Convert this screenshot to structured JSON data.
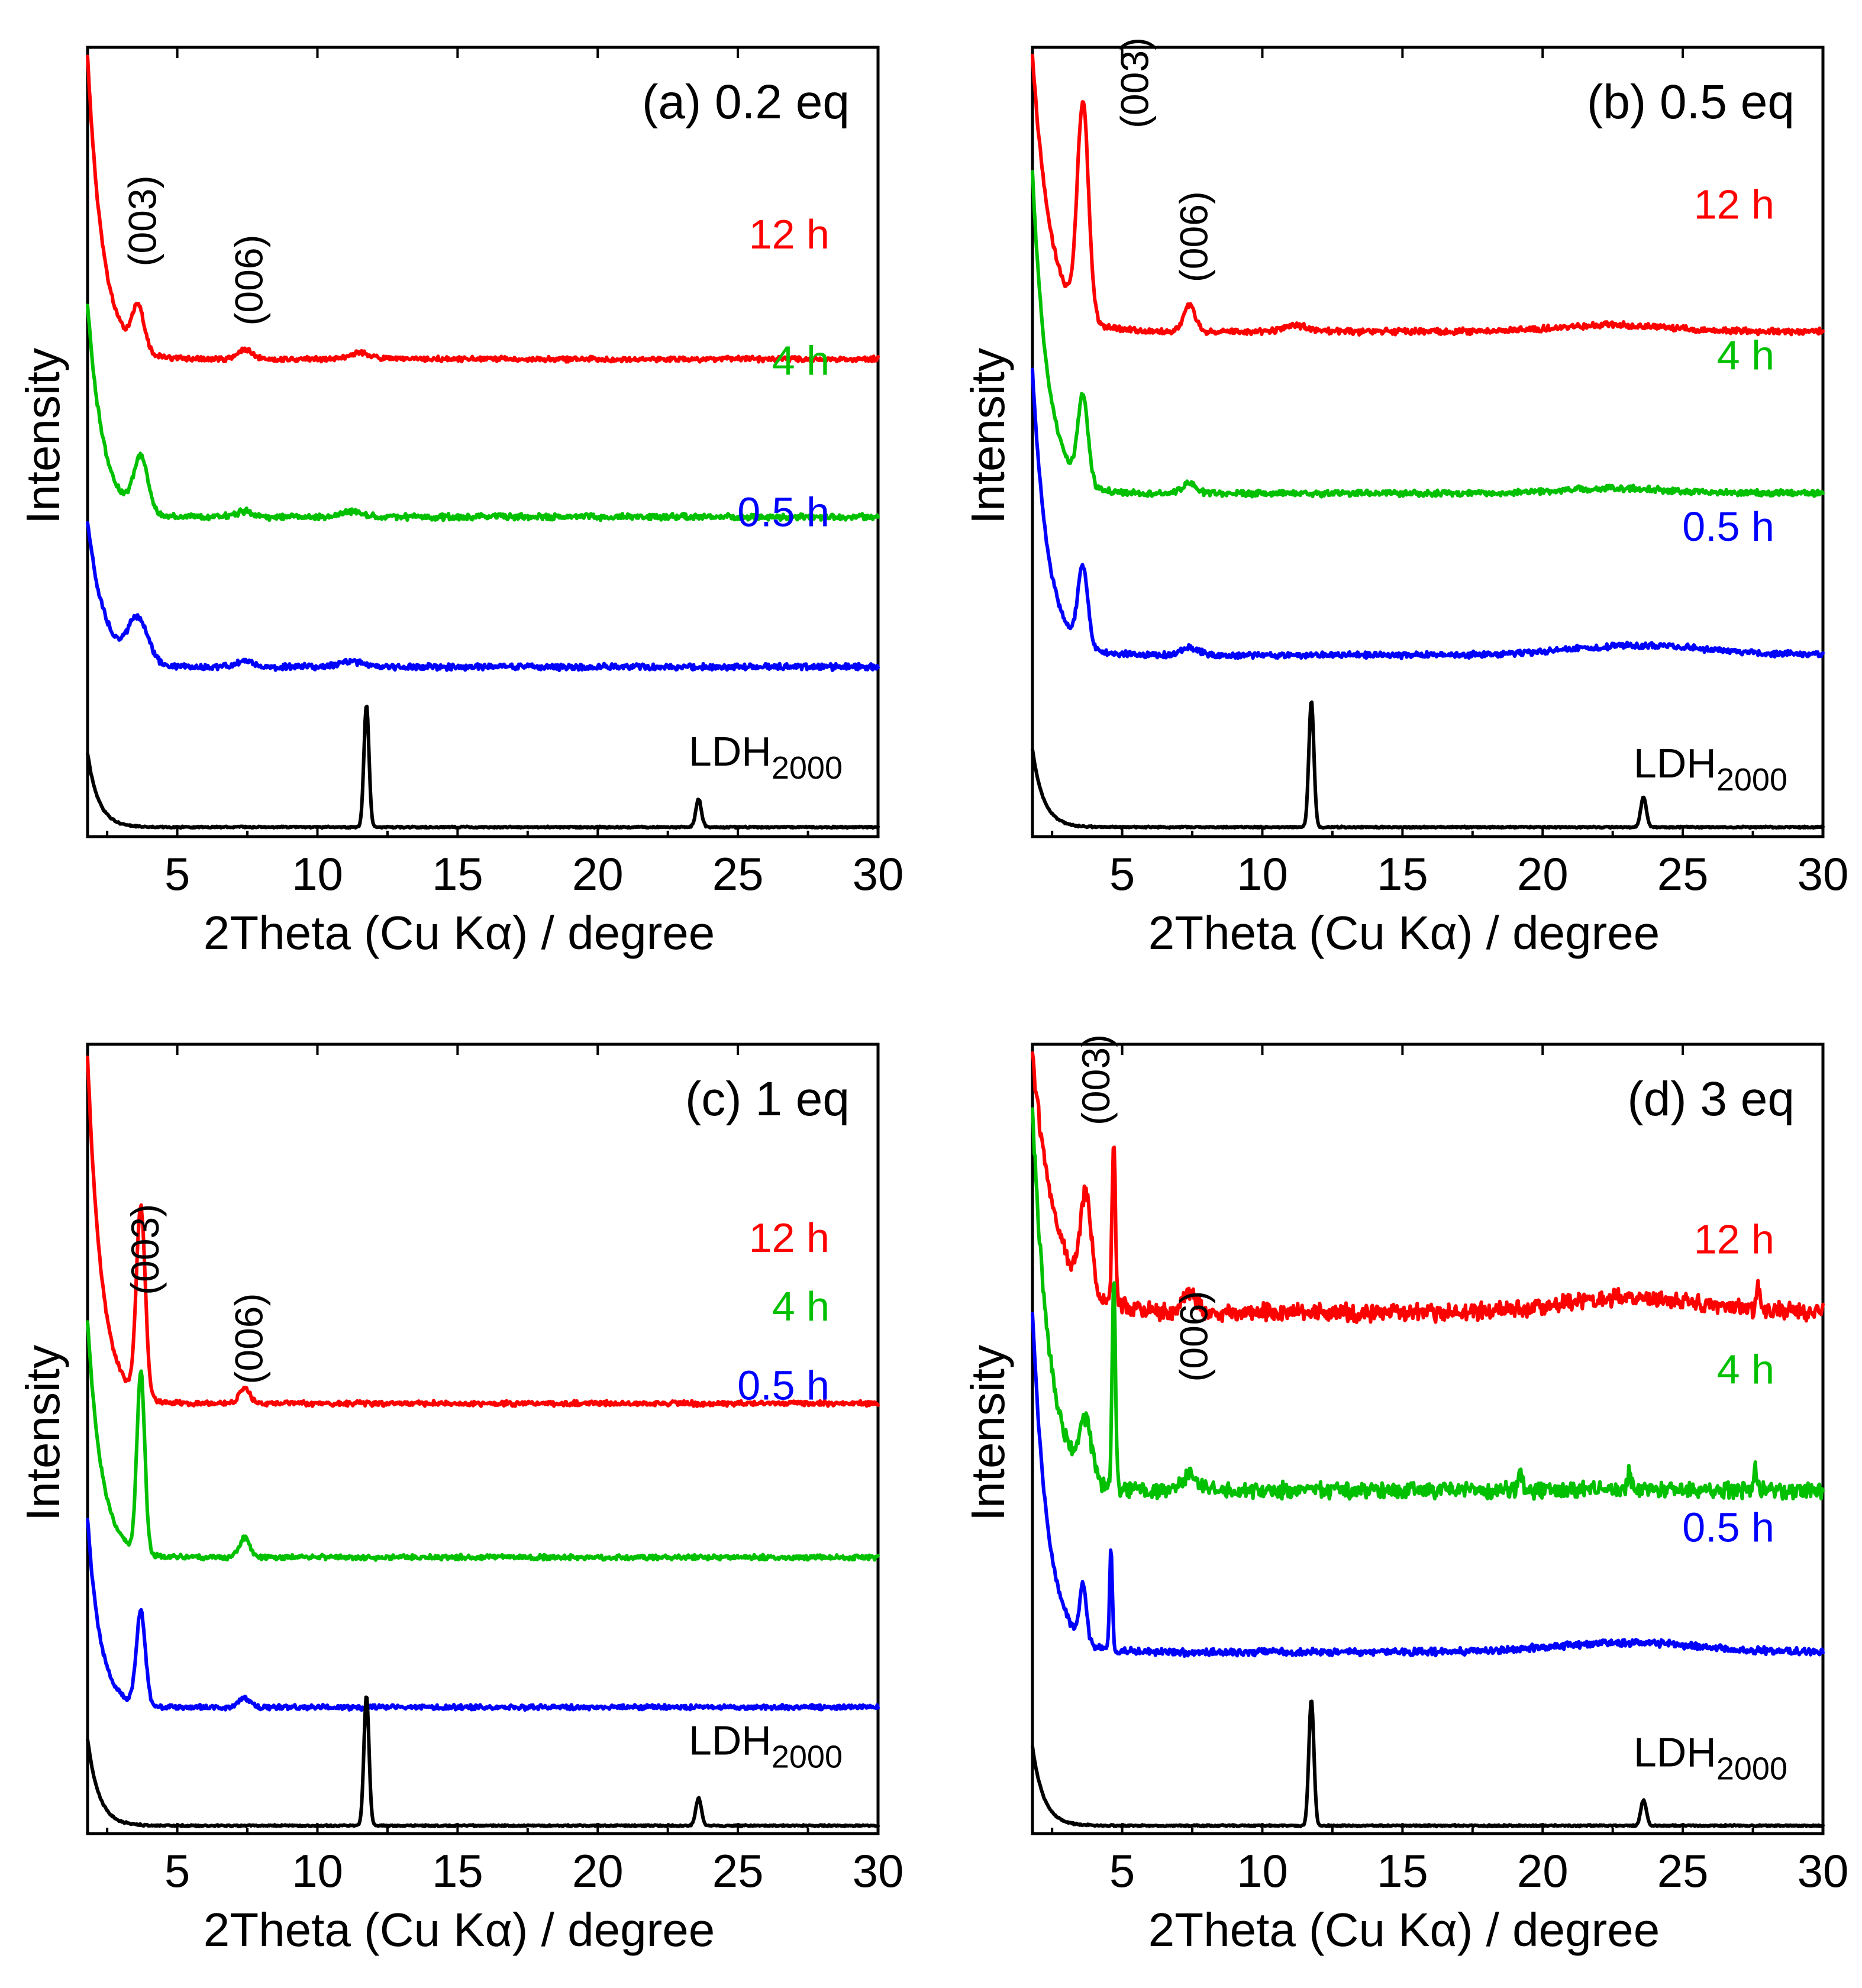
{
  "chart_data": [
    {
      "type": "line",
      "title": "(a) 0.2 eq",
      "xlabel": "2Theta (Cu Kα)  /  degree",
      "ylabel": "Intensity",
      "xlim": [
        1.8,
        30
      ],
      "ylim": [
        0,
        10
      ],
      "xticks": [
        5,
        10,
        15,
        20,
        25,
        30
      ],
      "xtick_labels": [
        "5",
        "10",
        "15",
        "20",
        "25",
        "30"
      ],
      "yticks_shown": false,
      "series": [
        {
          "name": "12 h",
          "label": "12 h",
          "color": "#ff0000",
          "baseline": 6.05,
          "low_angle_max": 9.9,
          "low_angle_decay": 0.55,
          "peaks": [
            {
              "x": 3.6,
              "h": 0.55,
              "w": 0.22
            },
            {
              "x": 7.4,
              "h": 0.12,
              "w": 0.25
            },
            {
              "x": 11.5,
              "h": 0.08,
              "w": 0.4
            }
          ],
          "noise": 0.025
        },
        {
          "name": "4 h",
          "label": "4 h",
          "color": "#00c000",
          "baseline": 4.05,
          "low_angle_max": 6.75,
          "low_angle_decay": 0.55,
          "peaks": [
            {
              "x": 3.7,
              "h": 0.7,
              "w": 0.25
            },
            {
              "x": 7.4,
              "h": 0.07,
              "w": 0.3
            },
            {
              "x": 11.2,
              "h": 0.07,
              "w": 0.4
            }
          ],
          "noise": 0.03
        },
        {
          "name": "0.5 h",
          "label": "0.5 h",
          "color": "#0000ff",
          "baseline": 2.15,
          "low_angle_max": 4.0,
          "low_angle_decay": 0.6,
          "peaks": [
            {
              "x": 3.6,
              "h": 0.55,
              "w": 0.35
            },
            {
              "x": 7.4,
              "h": 0.08,
              "w": 0.3
            },
            {
              "x": 11.2,
              "h": 0.07,
              "w": 0.4
            }
          ],
          "noise": 0.03
        },
        {
          "name": "LDH2000",
          "label": "LDH",
          "label_sub": "2000",
          "color": "#000000",
          "baseline": 0.12,
          "low_angle_max": 1.05,
          "low_angle_decay": 0.4,
          "peaks": [
            {
              "x": 11.75,
              "h": 1.55,
              "w": 0.09
            },
            {
              "x": 23.6,
              "h": 0.35,
              "w": 0.1
            }
          ],
          "noise": 0.008
        }
      ],
      "annotations": [
        {
          "text": "(003)",
          "x": 3.6
        },
        {
          "text": "(006)",
          "x": 7.4
        }
      ]
    },
    {
      "type": "line",
      "title": "(b) 0.5 eq",
      "xlabel": "2Theta (Cu Kα)  /  degree",
      "ylabel": "Intensity",
      "xlim": [
        1.8,
        30
      ],
      "ylim": [
        0,
        10
      ],
      "xticks": [
        5,
        10,
        15,
        20,
        25,
        30
      ],
      "xtick_labels": [
        "5",
        "10",
        "15",
        "20",
        "25",
        "30"
      ],
      "yticks_shown": false,
      "series": [
        {
          "name": "12 h",
          "label": "12 h",
          "color": "#ff0000",
          "baseline": 6.4,
          "low_angle_max": 9.9,
          "low_angle_decay": 0.65,
          "peaks": [
            {
              "x": 3.6,
              "h": 2.7,
              "w": 0.2
            },
            {
              "x": 7.4,
              "h": 0.35,
              "w": 0.2
            },
            {
              "x": 11.2,
              "h": 0.08,
              "w": 0.4
            },
            {
              "x": 22.5,
              "h": 0.08,
              "w": 2.0
            }
          ],
          "noise": 0.03
        },
        {
          "name": "4 h",
          "label": "4 h",
          "color": "#00c000",
          "baseline": 4.35,
          "low_angle_max": 8.4,
          "low_angle_decay": 0.55,
          "peaks": [
            {
              "x": 3.6,
              "h": 1.1,
              "w": 0.18
            },
            {
              "x": 7.4,
              "h": 0.12,
              "w": 0.25
            },
            {
              "x": 22.5,
              "h": 0.06,
              "w": 2.0
            }
          ],
          "noise": 0.03
        },
        {
          "name": "0.5 h",
          "label": "0.5 h",
          "color": "#0000ff",
          "baseline": 2.3,
          "low_angle_max": 5.9,
          "low_angle_decay": 0.55,
          "peaks": [
            {
              "x": 3.6,
              "h": 1.0,
              "w": 0.18
            },
            {
              "x": 7.4,
              "h": 0.1,
              "w": 0.3
            },
            {
              "x": 23.5,
              "h": 0.12,
              "w": 2.5
            }
          ],
          "noise": 0.03
        },
        {
          "name": "LDH2000",
          "label": "LDH",
          "label_sub": "2000",
          "color": "#000000",
          "baseline": 0.12,
          "low_angle_max": 1.1,
          "low_angle_decay": 0.4,
          "peaks": [
            {
              "x": 11.75,
              "h": 1.6,
              "w": 0.09
            },
            {
              "x": 23.6,
              "h": 0.38,
              "w": 0.1
            }
          ],
          "noise": 0.008
        }
      ],
      "annotations": [
        {
          "text": "(003)",
          "x": 3.6
        },
        {
          "text": "(006)",
          "x": 7.4
        }
      ]
    },
    {
      "type": "line",
      "title": "(c) 1 eq",
      "xlabel": "2Theta (Cu Kα)  /  degree",
      "ylabel": "Intensity",
      "xlim": [
        1.8,
        30
      ],
      "ylim": [
        0,
        10
      ],
      "xticks": [
        5,
        10,
        15,
        20,
        25,
        30
      ],
      "xtick_labels": [
        "5",
        "10",
        "15",
        "20",
        "25",
        "30"
      ],
      "yticks_shown": false,
      "series": [
        {
          "name": "12 h",
          "label": "12 h",
          "color": "#ff0000",
          "baseline": 5.45,
          "low_angle_max": 9.85,
          "low_angle_decay": 0.5,
          "peaks": [
            {
              "x": 3.7,
              "h": 2.4,
              "w": 0.16
            },
            {
              "x": 7.4,
              "h": 0.2,
              "w": 0.18
            }
          ],
          "noise": 0.025
        },
        {
          "name": "4 h",
          "label": "4 h",
          "color": "#00c000",
          "baseline": 3.5,
          "low_angle_max": 6.5,
          "low_angle_decay": 0.5,
          "peaks": [
            {
              "x": 3.7,
              "h": 2.3,
              "w": 0.14
            },
            {
              "x": 7.4,
              "h": 0.25,
              "w": 0.18
            }
          ],
          "noise": 0.025
        },
        {
          "name": "0.5 h",
          "label": "0.5 h",
          "color": "#0000ff",
          "baseline": 1.6,
          "low_angle_max": 4.0,
          "low_angle_decay": 0.45,
          "peaks": [
            {
              "x": 3.7,
              "h": 1.2,
              "w": 0.16
            },
            {
              "x": 7.4,
              "h": 0.12,
              "w": 0.2
            }
          ],
          "noise": 0.025
        },
        {
          "name": "LDH2000",
          "label": "LDH",
          "label_sub": "2000",
          "color": "#000000",
          "baseline": 0.1,
          "low_angle_max": 1.2,
          "low_angle_decay": 0.4,
          "peaks": [
            {
              "x": 11.75,
              "h": 1.65,
              "w": 0.09
            },
            {
              "x": 23.6,
              "h": 0.35,
              "w": 0.1
            }
          ],
          "noise": 0.008
        }
      ],
      "annotations": [
        {
          "text": "(003)",
          "x": 3.7
        },
        {
          "text": "(006)",
          "x": 7.4
        }
      ]
    },
    {
      "type": "line",
      "title": "(d) 3 eq",
      "xlabel": "2Theta (Cu Kα)  /  degree",
      "ylabel": "Intensity",
      "xlim": [
        1.8,
        30
      ],
      "ylim": [
        0,
        10
      ],
      "xticks": [
        5,
        10,
        15,
        20,
        25,
        30
      ],
      "xtick_labels": [
        "5",
        "10",
        "15",
        "20",
        "25",
        "30"
      ],
      "yticks_shown": false,
      "series": [
        {
          "name": "12 h",
          "label": "12 h",
          "color": "#ff0000",
          "baseline": 6.6,
          "low_angle_max": 9.9,
          "low_angle_decay": 0.8,
          "peaks": [
            {
              "x": 3.7,
              "h": 1.2,
              "w": 0.2
            },
            {
              "x": 4.7,
              "h": 2.1,
              "w": 0.06
            },
            {
              "x": 7.4,
              "h": 0.25,
              "w": 0.25
            },
            {
              "x": 23.0,
              "h": 0.18,
              "w": 2.5
            },
            {
              "x": 27.7,
              "h": 0.3,
              "w": 0.06
            }
          ],
          "noise": 0.09
        },
        {
          "name": "4 h",
          "label": "4 h",
          "color": "#00c000",
          "baseline": 4.35,
          "low_angle_max": 9.2,
          "low_angle_decay": 0.6,
          "peaks": [
            {
              "x": 3.7,
              "h": 0.7,
              "w": 0.2
            },
            {
              "x": 4.7,
              "h": 2.6,
              "w": 0.06
            },
            {
              "x": 7.4,
              "h": 0.2,
              "w": 0.25
            },
            {
              "x": 19.2,
              "h": 0.3,
              "w": 0.06
            },
            {
              "x": 23.1,
              "h": 0.25,
              "w": 0.06
            },
            {
              "x": 27.6,
              "h": 0.25,
              "w": 0.06
            }
          ],
          "noise": 0.08
        },
        {
          "name": "0.5 h",
          "label": "0.5 h",
          "color": "#0000ff",
          "baseline": 2.3,
          "low_angle_max": 6.6,
          "low_angle_decay": 0.55,
          "peaks": [
            {
              "x": 3.6,
              "h": 0.7,
              "w": 0.12
            },
            {
              "x": 4.6,
              "h": 1.3,
              "w": 0.05
            },
            {
              "x": 23.0,
              "h": 0.12,
              "w": 2.5
            }
          ],
          "noise": 0.035
        },
        {
          "name": "LDH2000",
          "label": "LDH",
          "label_sub": "2000",
          "color": "#000000",
          "baseline": 0.1,
          "low_angle_max": 1.1,
          "low_angle_decay": 0.4,
          "peaks": [
            {
              "x": 11.75,
              "h": 1.6,
              "w": 0.09
            },
            {
              "x": 23.6,
              "h": 0.32,
              "w": 0.1
            }
          ],
          "noise": 0.008
        }
      ],
      "annotations": [
        {
          "text": "(003)",
          "x": 3.7
        },
        {
          "text": "(006)",
          "x": 7.4
        }
      ]
    }
  ]
}
